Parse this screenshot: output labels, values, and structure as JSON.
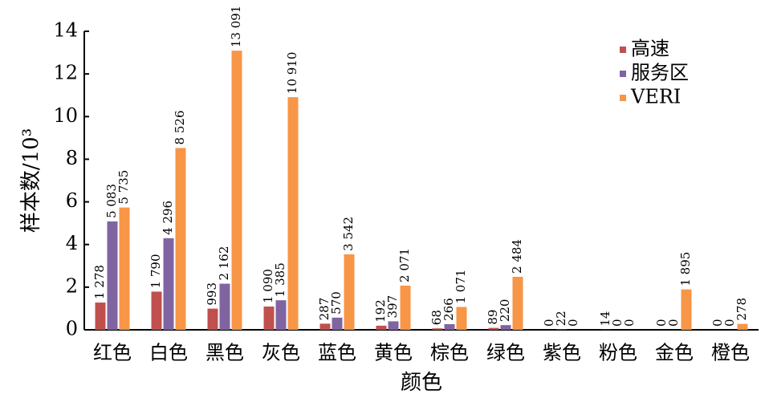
{
  "chart_data": {
    "type": "bar",
    "y_label": "样本数/10³",
    "x_label": "颜色",
    "categories": [
      "红色",
      "白色",
      "黑色",
      "灰色",
      "蓝色",
      "黄色",
      "棕色",
      "绿色",
      "紫色",
      "粉色",
      "金色",
      "橙色"
    ],
    "series": [
      {
        "name": "高速",
        "color": "#c0504d",
        "values": [
          1.278,
          1.79,
          0.993,
          1.09,
          0.287,
          0.192,
          0.068,
          0.089,
          0,
          0.014,
          0,
          0
        ],
        "value_labels": [
          "1 278",
          "1 790",
          "993",
          "1 090",
          "287",
          "192",
          "68",
          "89",
          "0",
          "14",
          "0",
          "0"
        ]
      },
      {
        "name": "服务区",
        "color": "#8064a2",
        "values": [
          5.083,
          4.296,
          2.162,
          1.385,
          0.57,
          0.397,
          0.266,
          0.22,
          0.022,
          0,
          0,
          0
        ],
        "value_labels": [
          "5 083",
          "4 296",
          "2 162",
          "1 385",
          "570",
          "397",
          "266",
          "220",
          "22",
          "0",
          "0",
          "0"
        ]
      },
      {
        "name": "VERI",
        "color": "#f79646",
        "values": [
          5.735,
          8.526,
          13.091,
          10.91,
          3.542,
          2.071,
          1.071,
          2.484,
          0,
          0,
          1.895,
          0.278
        ],
        "value_labels": [
          "5 735",
          "8 526",
          "13 091",
          "10 910",
          "3 542",
          "2 071",
          "1 071",
          "2 484",
          "0",
          "0",
          "1 895",
          "278"
        ]
      }
    ],
    "ylim": [
      0,
      14
    ],
    "yticks": [
      0,
      2,
      4,
      6,
      8,
      10,
      12,
      14
    ],
    "grid": false,
    "legend": "upper right"
  }
}
